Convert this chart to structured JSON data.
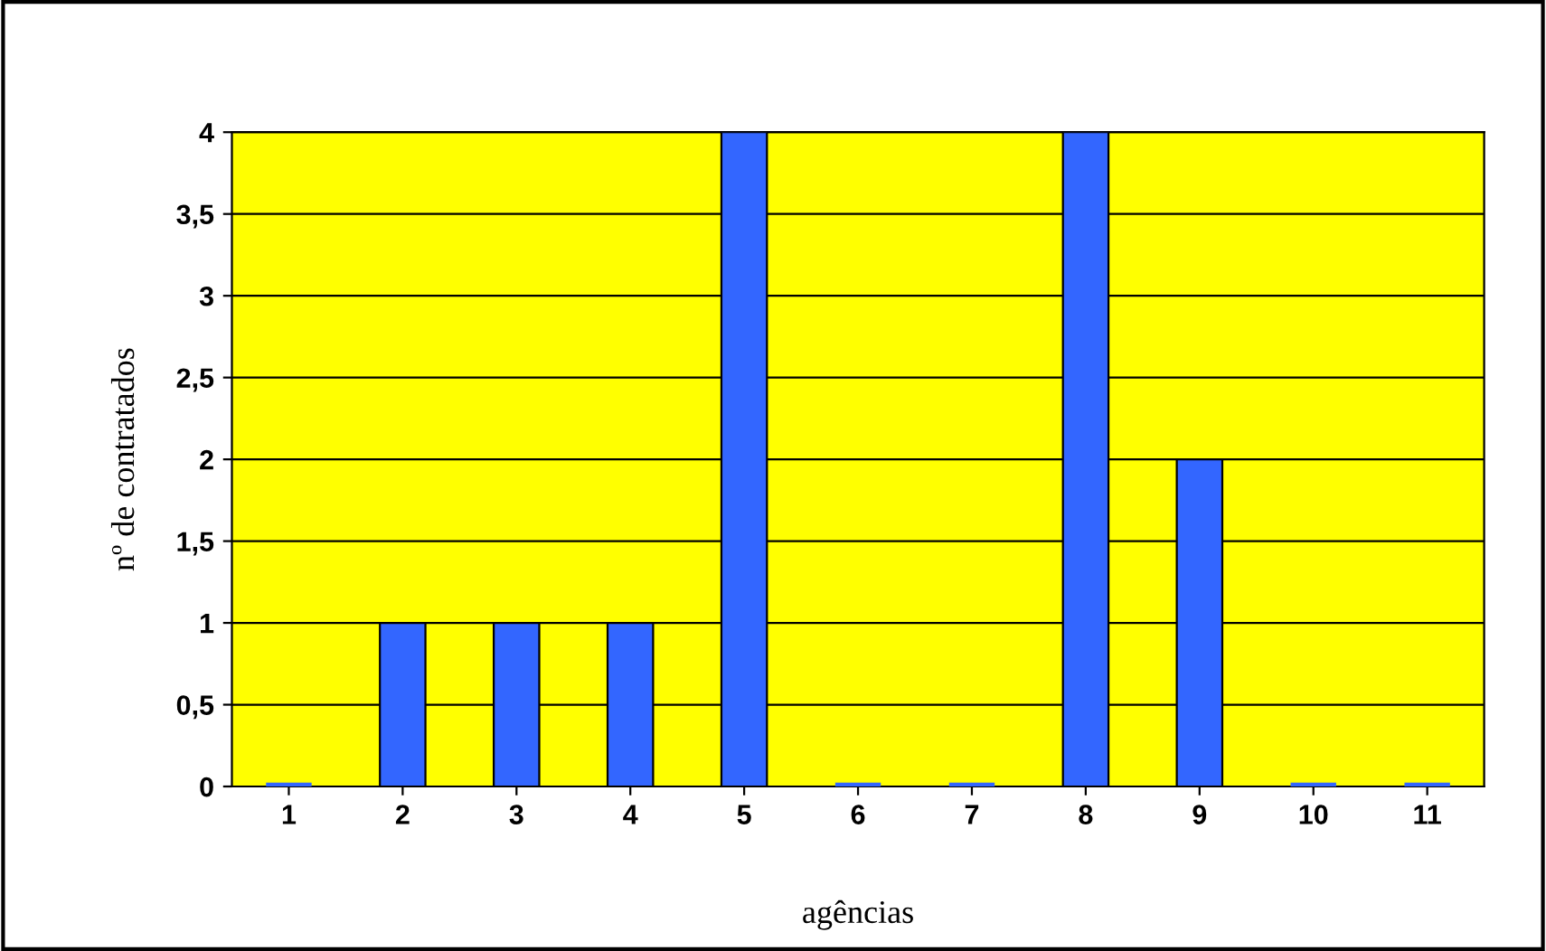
{
  "chart_data": {
    "type": "bar",
    "xlabel": "agências",
    "ylabel": "nº de contratados",
    "categories": [
      "1",
      "2",
      "3",
      "4",
      "5",
      "6",
      "7",
      "8",
      "9",
      "10",
      "11"
    ],
    "values": [
      0,
      1,
      1,
      1,
      4,
      0,
      0,
      4,
      2,
      0,
      0
    ],
    "color": "#3366ff",
    "ylim": [
      0,
      4
    ],
    "yticks": [
      0,
      {
        "value": 0.5,
        "label": "0,5"
      },
      1,
      {
        "value": 1.5,
        "label": "1,5"
      },
      2,
      {
        "value": 2.5,
        "label": "2,5"
      },
      3,
      {
        "value": 3.5,
        "label": "3,5"
      },
      4
    ],
    "grid": "y",
    "legend": false
  }
}
